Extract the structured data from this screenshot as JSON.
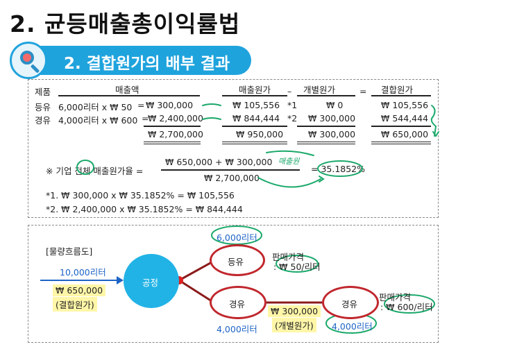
{
  "title": "2. 균등매출총이익률법",
  "subtitle": "2. 결합원가의 배부 결과",
  "table": {
    "headers": {
      "product": "제품",
      "sales": "매출액",
      "cogs": "매출원가",
      "minus": "–",
      "separable": "개별원가",
      "equals": "=",
      "joint": "결합원가"
    },
    "rows": [
      {
        "product": "등유",
        "sales_expr": "6,000리터 x ₩ 50",
        "eq": "=",
        "sales_amount": "₩ 300,000",
        "cogs": "₩ 105,556",
        "note": "*1",
        "separable": "₩ 0",
        "joint": "₩ 105,556"
      },
      {
        "product": "경유",
        "sales_expr": "4,000리터 x ₩ 600",
        "eq": "=",
        "sales_amount": "₩ 2,400,000",
        "cogs": "₩ 844,444",
        "note": "*2",
        "separable": "₩ 300,000",
        "joint": "₩ 544,444"
      }
    ],
    "totals": {
      "sales": "₩ 2,700,000",
      "cogs": "₩ 950,000",
      "separable": "₩ 300,000",
      "joint": "₩ 650,000"
    }
  },
  "formula": {
    "label": "※ 기업 전체 매출원가율 =",
    "numerator": "₩ 650,000   +   ₩ 300,000",
    "denominator": "₩ 2,700,000",
    "result": "= 35.1852%",
    "handwritten_note": "매출원"
  },
  "footnotes": [
    "*1. ₩ 300,000 x ₩ 35.1852% =   ₩ 105,556",
    "*2. ₩ 2,400,000 x ₩ 35.1852% =   ₩ 844,444"
  ],
  "flow": {
    "label": "[물량흐름도]",
    "input_qty": "10,000리터",
    "input_cost": "₩ 650,000",
    "input_cost_label": "(결합원가)",
    "process": "공정",
    "product1": "등유",
    "product1_qty": "6,000리터",
    "product1_price_label": "판매가격",
    "product1_price": ": ₩ 50/리터",
    "product2": "경유",
    "product2_qty": "4,000리터",
    "further_cost": "₩ 300,000",
    "further_cost_label": "(개별원가)",
    "product3": "경유",
    "product3_qty": "4,000리터",
    "product3_price_label": "판매가격",
    "product3_price": ": ₩ 600/리터"
  },
  "colors": {
    "accent": "#1fa3dd",
    "node_border": "#c0272d",
    "process_fill": "#22b3e6",
    "annotation": "#1aa86a",
    "highlight": "#fff6a8",
    "flow_text": "#1d63c6"
  }
}
